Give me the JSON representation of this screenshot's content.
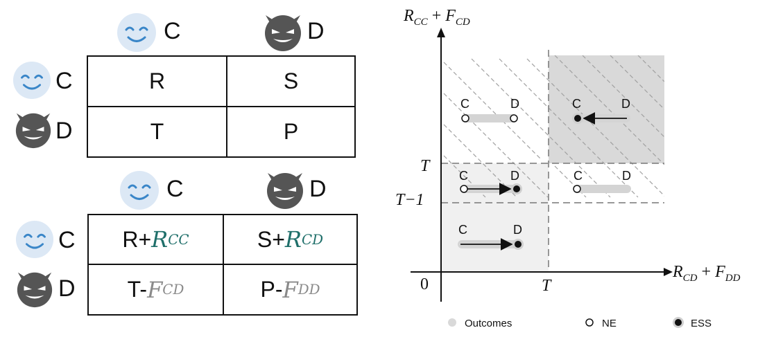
{
  "players": {
    "cooperator": "C",
    "defector": "D"
  },
  "top_table": {
    "cells": [
      [
        "R",
        "S"
      ],
      [
        "T",
        "P"
      ]
    ]
  },
  "bottom_table": {
    "cells": [
      [
        {
          "base": "R+",
          "term": "R",
          "sub": "CC",
          "color": "#1f6f6a"
        },
        {
          "base": "S+",
          "term": "R",
          "sub": "CD",
          "color": "#1f6f6a"
        }
      ],
      [
        {
          "base": "T-",
          "term": "F",
          "sub": "CD",
          "color": "#8a8a8a"
        },
        {
          "base": "P-",
          "term": "F",
          "sub": "DD",
          "color": "#8a8a8a"
        }
      ]
    ]
  },
  "plot": {
    "y_axis": {
      "term1": "R",
      "sub1": "CC",
      "plus": "+",
      "term2": "F",
      "sub2": "CD"
    },
    "x_axis": {
      "term1": "R",
      "sub1": "CD",
      "plus": "+",
      "term2": "F",
      "sub2": "DD"
    },
    "ticks": {
      "origin": "0",
      "x_T": "T",
      "y_T": "T",
      "y_T_minus_1": "T−1"
    },
    "regions": [
      {
        "id": "top-left",
        "c": "C",
        "d": "D",
        "marker": "NE"
      },
      {
        "id": "top-right",
        "c": "C",
        "d": "D",
        "marker": "ESS",
        "arrow": "D-to-C"
      },
      {
        "id": "middle-left",
        "c": "C",
        "d": "D",
        "marker": "ESS",
        "arrow": "C-to-D"
      },
      {
        "id": "middle-right",
        "c": "C",
        "d": "D",
        "marker": "NE"
      },
      {
        "id": "bottom-left",
        "c": "C",
        "d": "D",
        "marker": "ESS",
        "arrow": "C-to-D"
      }
    ],
    "legend": [
      {
        "label": "Outcomes",
        "icon": "gray-dot"
      },
      {
        "label": "NE",
        "icon": "open-circle"
      },
      {
        "label": "ESS",
        "icon": "filled-circle-halo"
      }
    ],
    "colors": {
      "shade": "#d9d9d9",
      "light_shade": "#f2f2f2",
      "hatch": "#9a9a9a",
      "teal": "#1f6f6a"
    }
  }
}
